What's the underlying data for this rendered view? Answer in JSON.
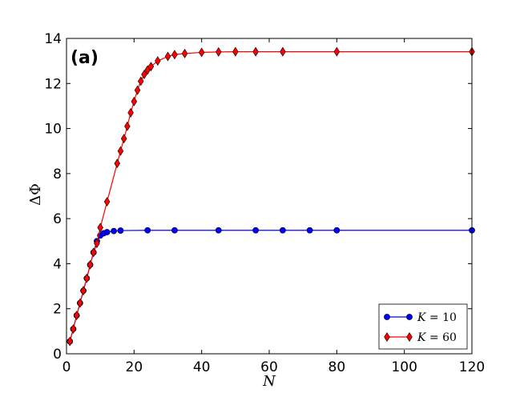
{
  "chart_data": {
    "type": "line",
    "panel_label": "(a)",
    "xlabel": "N",
    "ylabel": "ΔΦ",
    "xlim": [
      0,
      120
    ],
    "ylim": [
      0,
      14
    ],
    "xticks": [
      0,
      20,
      40,
      60,
      80,
      100,
      120
    ],
    "yticks": [
      0,
      2,
      4,
      6,
      8,
      10,
      12,
      14
    ],
    "grid": false,
    "legend_position": "lower-right",
    "series": [
      {
        "name": "K=10",
        "legend_var": "K",
        "legend_value": "10",
        "color": "#0000ff",
        "marker": "circle",
        "x": [
          1,
          2,
          3,
          4,
          5,
          6,
          7,
          8,
          9,
          10,
          11,
          12,
          14,
          16,
          24,
          32,
          45,
          56,
          64,
          72,
          80,
          120
        ],
        "y": [
          0.55,
          1.1,
          1.7,
          2.25,
          2.8,
          3.35,
          3.95,
          4.5,
          5.0,
          5.25,
          5.35,
          5.4,
          5.45,
          5.47,
          5.48,
          5.48,
          5.48,
          5.48,
          5.48,
          5.48,
          5.48,
          5.48
        ]
      },
      {
        "name": "K=60",
        "legend_var": "K",
        "legend_value": "60",
        "color": "#ff0000",
        "marker": "diamond",
        "x": [
          1,
          2,
          3,
          4,
          5,
          6,
          7,
          8,
          9,
          10,
          12,
          15,
          16,
          17,
          18,
          19,
          20,
          21,
          22,
          23,
          24,
          25,
          27,
          30,
          32,
          35,
          40,
          45,
          50,
          56,
          64,
          80,
          120
        ],
        "y": [
          0.55,
          1.1,
          1.7,
          2.25,
          2.8,
          3.35,
          3.95,
          4.5,
          4.9,
          5.6,
          6.75,
          8.45,
          9.0,
          9.55,
          10.1,
          10.7,
          11.2,
          11.7,
          12.1,
          12.4,
          12.6,
          12.75,
          13.0,
          13.2,
          13.28,
          13.33,
          13.38,
          13.4,
          13.41,
          13.41,
          13.41,
          13.41,
          13.41
        ]
      }
    ]
  }
}
